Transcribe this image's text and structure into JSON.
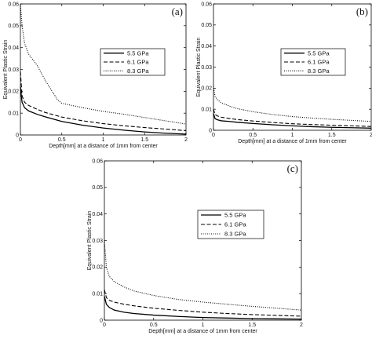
{
  "chart_data": [
    {
      "type": "line",
      "panel_label": "(a)",
      "xlabel": "Depth[mm] at a distance of 1mm from center",
      "ylabel": "Equivalent Plastic Strain",
      "xlim": [
        0,
        2
      ],
      "ylim": [
        0,
        0.06
      ],
      "xticks": [
        "0",
        "0.5",
        "1",
        "1.5",
        "2"
      ],
      "yticks": [
        "0",
        "0.01",
        "0.02",
        "0.03",
        "0.04",
        "0.05",
        "0.06"
      ],
      "grid": false,
      "legend_position": "upper-right",
      "series": [
        {
          "name": "5.5 GPa",
          "style": "solid",
          "color": "#000000",
          "x": [
            0,
            0.02,
            0.05,
            0.1,
            0.2,
            0.3,
            0.5,
            0.75,
            1.0,
            1.25,
            1.5,
            1.75,
            2.0
          ],
          "y": [
            0.022,
            0.015,
            0.0125,
            0.011,
            0.0095,
            0.0083,
            0.0062,
            0.0045,
            0.0032,
            0.0022,
            0.0014,
            0.0008,
            0.0004
          ]
        },
        {
          "name": "6.1 GPa",
          "style": "dashed",
          "color": "#000000",
          "x": [
            0,
            0.02,
            0.05,
            0.1,
            0.2,
            0.3,
            0.5,
            0.75,
            1.0,
            1.25,
            1.5,
            1.75,
            2.0
          ],
          "y": [
            0.029,
            0.018,
            0.015,
            0.0135,
            0.0118,
            0.0103,
            0.0082,
            0.0065,
            0.0052,
            0.0042,
            0.0034,
            0.0027,
            0.002
          ]
        },
        {
          "name": "8.3 GPa",
          "style": "dotted",
          "color": "#000000",
          "x": [
            0,
            0.02,
            0.05,
            0.1,
            0.2,
            0.3,
            0.45,
            0.5,
            0.75,
            1.0,
            1.25,
            1.5,
            1.75,
            2.0
          ],
          "y": [
            0.06,
            0.05,
            0.042,
            0.037,
            0.032,
            0.025,
            0.016,
            0.0145,
            0.0125,
            0.0108,
            0.0095,
            0.008,
            0.0065,
            0.005
          ]
        }
      ]
    },
    {
      "type": "line",
      "panel_label": "(b)",
      "xlabel": "Depth[mm] at a distance of 1mm from center",
      "ylabel": "Equivalent Plastic Strain",
      "xlim": [
        0,
        2
      ],
      "ylim": [
        0,
        0.06
      ],
      "xticks": [
        "0",
        "0.5",
        "1",
        "1.5",
        "2"
      ],
      "yticks": [
        "0",
        "0.01",
        "0.02",
        "0.03",
        "0.04",
        "0.05",
        "0.06"
      ],
      "grid": false,
      "legend_position": "upper-right",
      "series": [
        {
          "name": "5.5 GPa",
          "style": "solid",
          "color": "#000000",
          "x": [
            0,
            0.02,
            0.05,
            0.1,
            0.2,
            0.3,
            0.5,
            0.75,
            1.0,
            1.25,
            1.5,
            1.75,
            2.0
          ],
          "y": [
            0.008,
            0.0055,
            0.005,
            0.0045,
            0.0042,
            0.0038,
            0.0032,
            0.0026,
            0.0021,
            0.0017,
            0.0014,
            0.0012,
            0.001
          ]
        },
        {
          "name": "6.1 GPa",
          "style": "dashed",
          "color": "#000000",
          "x": [
            0,
            0.02,
            0.05,
            0.1,
            0.2,
            0.3,
            0.5,
            0.75,
            1.0,
            1.25,
            1.5,
            1.75,
            2.0
          ],
          "y": [
            0.01,
            0.0075,
            0.0068,
            0.0062,
            0.0056,
            0.0051,
            0.0044,
            0.0037,
            0.0031,
            0.0027,
            0.0024,
            0.0021,
            0.0018
          ]
        },
        {
          "name": "8.3 GPa",
          "style": "dotted",
          "color": "#000000",
          "x": [
            0,
            0.02,
            0.05,
            0.1,
            0.2,
            0.3,
            0.5,
            0.75,
            1.0,
            1.25,
            1.5,
            1.75,
            2.0
          ],
          "y": [
            0.021,
            0.016,
            0.0145,
            0.013,
            0.0115,
            0.0103,
            0.0088,
            0.0075,
            0.0065,
            0.0058,
            0.0052,
            0.0047,
            0.0042
          ]
        }
      ]
    },
    {
      "type": "line",
      "panel_label": "(c)",
      "xlabel": "Depth[mm] at a distance of 1mm from center",
      "ylabel": "Equivalent Plastic Strain",
      "xlim": [
        0,
        2
      ],
      "ylim": [
        0,
        0.06
      ],
      "xticks": [
        "0",
        "0.5",
        "1",
        "1.5",
        "2"
      ],
      "yticks": [
        "0",
        "0.01",
        "0.02",
        "0.03",
        "0.04",
        "0.05",
        "0.06"
      ],
      "grid": false,
      "legend_position": "upper-right",
      "series": [
        {
          "name": "5.5 GPa",
          "style": "solid",
          "color": "#000000",
          "x": [
            0,
            0.02,
            0.05,
            0.1,
            0.2,
            0.3,
            0.5,
            0.75,
            1.0,
            1.25,
            1.5,
            1.75,
            2.0
          ],
          "y": [
            0.009,
            0.006,
            0.0048,
            0.0038,
            0.003,
            0.0025,
            0.0019,
            0.0014,
            0.001,
            0.0008,
            0.0006,
            0.0005,
            0.0004
          ]
        },
        {
          "name": "6.1 GPa",
          "style": "dashed",
          "color": "#000000",
          "x": [
            0,
            0.02,
            0.05,
            0.1,
            0.2,
            0.3,
            0.5,
            0.75,
            1.0,
            1.25,
            1.5,
            1.75,
            2.0
          ],
          "y": [
            0.0115,
            0.0085,
            0.0075,
            0.0068,
            0.006,
            0.0054,
            0.0045,
            0.0037,
            0.003,
            0.0025,
            0.0021,
            0.0018,
            0.0015
          ]
        },
        {
          "name": "8.3 GPa",
          "style": "dotted",
          "color": "#000000",
          "x": [
            0,
            0.02,
            0.05,
            0.1,
            0.2,
            0.3,
            0.5,
            0.75,
            1.0,
            1.25,
            1.5,
            1.75,
            2.0
          ],
          "y": [
            0.03,
            0.02,
            0.0165,
            0.0145,
            0.0125,
            0.011,
            0.0093,
            0.0078,
            0.0068,
            0.006,
            0.0052,
            0.0045,
            0.0038
          ]
        }
      ]
    }
  ]
}
